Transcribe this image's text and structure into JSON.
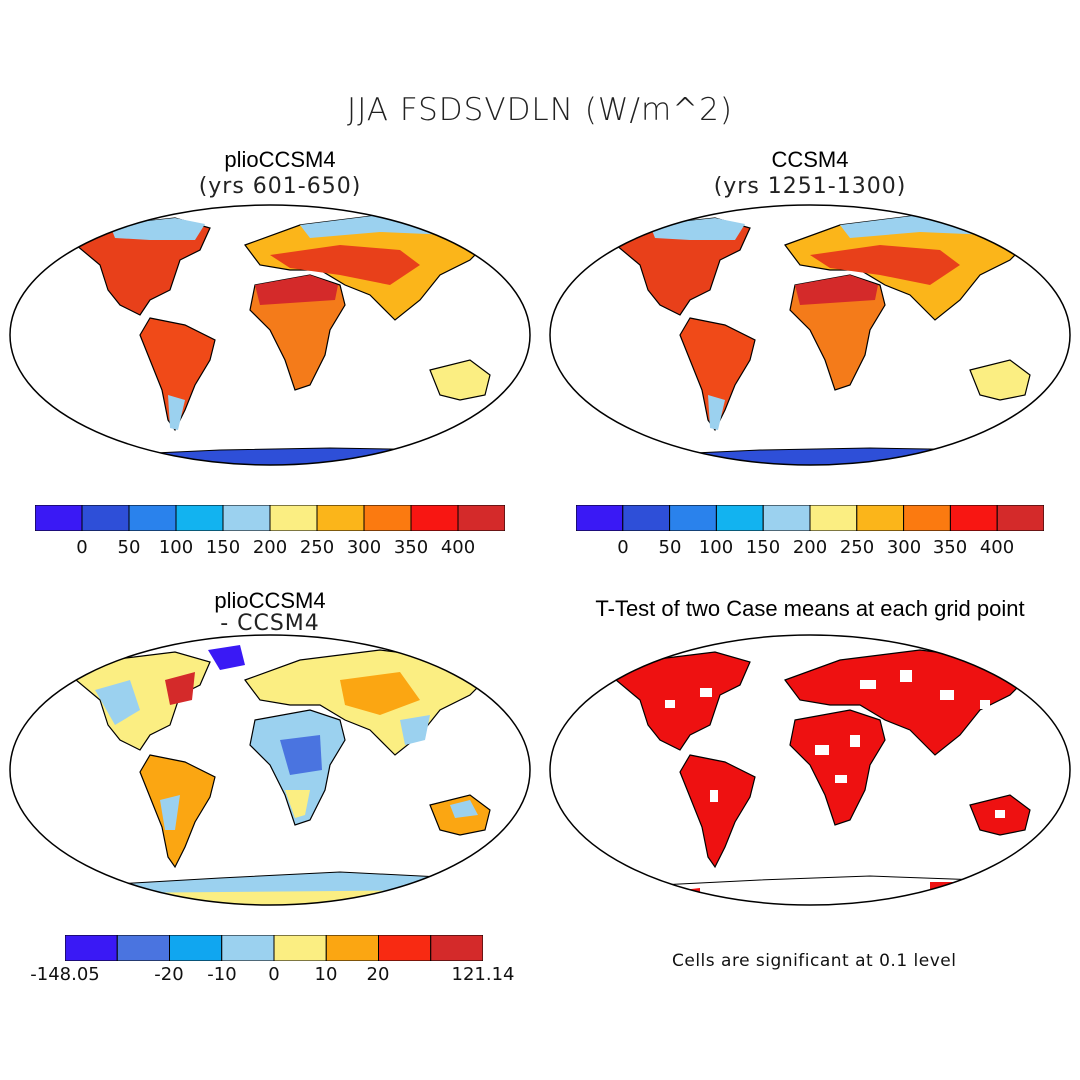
{
  "figure": {
    "title": "JJA FSDSVDLN (W/m^2)"
  },
  "panels": [
    {
      "title": "plioCCSM4",
      "subtitle": "(yrs 601-650)"
    },
    {
      "title": "CCSM4",
      "subtitle": "(yrs 1251-1300)"
    },
    {
      "title": "plioCCSM4",
      "subtitle": "- CCSM4"
    },
    {
      "title": "T-Test of two Case means at each grid point",
      "subtitle": ""
    }
  ],
  "colorbars": {
    "absolute": {
      "colors": [
        "#3a19f5",
        "#2e4fd8",
        "#2a82ec",
        "#12b3f0",
        "#9bd1ef",
        "#fbee82",
        "#fbb51a",
        "#fb7a10",
        "#f81612",
        "#d42a2a"
      ],
      "labels": [
        "0",
        "50",
        "100",
        "150",
        "200",
        "250",
        "300",
        "350",
        "400"
      ]
    },
    "difference": {
      "colors": [
        "#3a19f5",
        "#4a74e0",
        "#10a6f0",
        "#9bd1ef",
        "#fbee82",
        "#fba612",
        "#f82a12",
        "#d42a2a"
      ],
      "labels": [
        "-148.05",
        "-20",
        "-10",
        "0",
        "10",
        "20",
        "121.14"
      ]
    }
  },
  "significance": {
    "note": "Cells are significant at 0.1 level",
    "color": "#ee1111"
  },
  "colors": {
    "antarctica": "#2e4fd8",
    "coastline": "#000000"
  }
}
